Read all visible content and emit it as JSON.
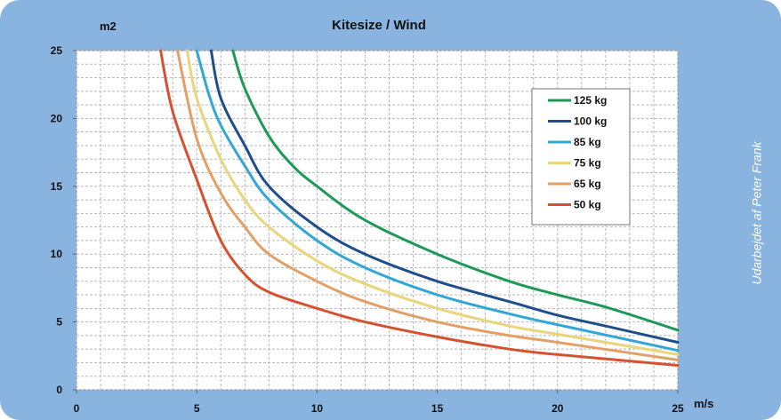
{
  "chart_data": {
    "type": "line",
    "title": "Kitesize / Wind",
    "ylabel": "m2",
    "xlabel": "m/s",
    "xlim": [
      0,
      25
    ],
    "ylim": [
      0,
      25
    ],
    "x_ticks": [
      0,
      5,
      10,
      15,
      20,
      25
    ],
    "y_ticks": [
      0,
      5,
      10,
      15,
      20,
      25
    ],
    "grid": true,
    "legend_position": "top-right",
    "note": "Udarbejdet af Peter Frank",
    "series": [
      {
        "name": "125 kg",
        "color": "#1e9a58",
        "x": [
          6.5,
          7,
          8,
          9,
          10,
          12,
          15,
          18,
          20,
          22,
          25
        ],
        "y": [
          25,
          22.2,
          18.7,
          16.5,
          15,
          12.5,
          10,
          8,
          7,
          6.1,
          4.4
        ]
      },
      {
        "name": "100 kg",
        "color": "#1f4e8c",
        "x": [
          5.6,
          6,
          7,
          8,
          10,
          12,
          15,
          18,
          20,
          22,
          25
        ],
        "y": [
          25,
          21.5,
          18,
          15,
          12,
          10,
          8,
          6.5,
          5.5,
          4.7,
          3.5
        ]
      },
      {
        "name": "85 kg",
        "color": "#31a7d6",
        "x": [
          5,
          5.5,
          6,
          7,
          8,
          10,
          12,
          15,
          18,
          20,
          25
        ],
        "y": [
          25,
          21.8,
          19.5,
          16.5,
          14,
          11,
          9,
          7,
          5.6,
          4.8,
          2.9
        ]
      },
      {
        "name": "75 kg",
        "color": "#e9d57a",
        "x": [
          4.6,
          5,
          6,
          7,
          8,
          10,
          12,
          15,
          18,
          20,
          25
        ],
        "y": [
          25,
          21.5,
          17,
          14,
          12,
          9.5,
          7.8,
          6,
          4.7,
          4.1,
          2.6
        ]
      },
      {
        "name": "65 kg",
        "color": "#e3a066",
        "x": [
          4.2,
          5,
          6,
          7,
          8,
          10,
          12,
          15,
          18,
          20,
          25
        ],
        "y": [
          25,
          18.5,
          14.5,
          12,
          10,
          8,
          6.5,
          5,
          4,
          3.5,
          2.2
        ]
      },
      {
        "name": "50 kg",
        "color": "#d6512f",
        "x": [
          3.5,
          4,
          5,
          6,
          7,
          8,
          10,
          12,
          15,
          18,
          20,
          25
        ],
        "y": [
          25,
          20.5,
          15.5,
          11,
          8.5,
          7.2,
          6,
          5,
          3.9,
          3,
          2.6,
          1.8
        ]
      }
    ]
  }
}
